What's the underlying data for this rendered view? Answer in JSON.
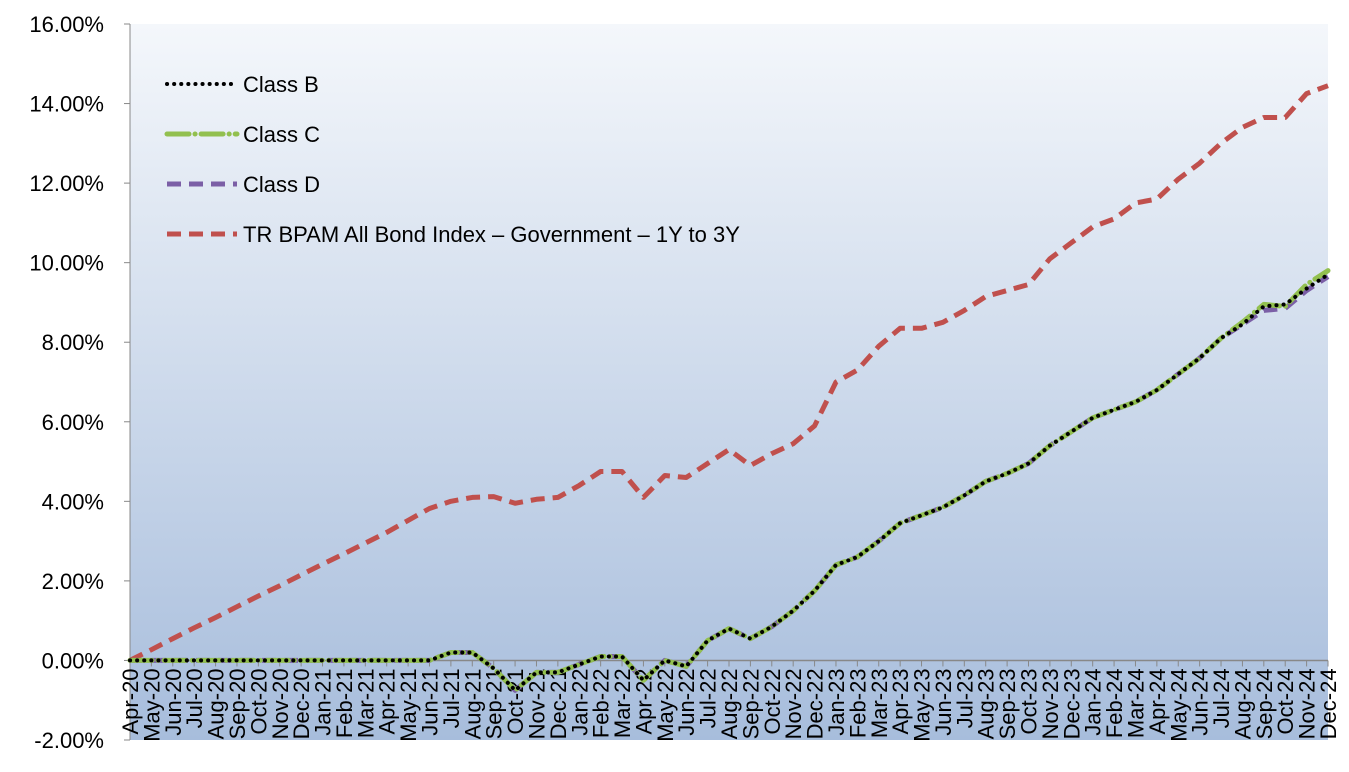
{
  "chart_data": {
    "type": "line",
    "categories": [
      "Apr-20",
      "May-20",
      "Jun-20",
      "Jul-20",
      "Aug-20",
      "Sep-20",
      "Oct-20",
      "Nov-20",
      "Dec-20",
      "Jan-21",
      "Feb-21",
      "Mar-21",
      "Apr-21",
      "May-21",
      "Jun-21",
      "Jul-21",
      "Aug-21",
      "Sep-21",
      "Oct-21",
      "Nov-21",
      "Dec-21",
      "Jan-22",
      "Feb-22",
      "Mar-22",
      "Apr-22",
      "May-22",
      "Jun-22",
      "Jul-22",
      "Aug-22",
      "Sep-22",
      "Oct-22",
      "Nov-22",
      "Dec-22",
      "Jan-23",
      "Feb-23",
      "Mar-23",
      "Apr-23",
      "May-23",
      "Jun-23",
      "Jul-23",
      "Aug-23",
      "Sep-23",
      "Oct-23",
      "Nov-23",
      "Dec-23",
      "Jan-24",
      "Feb-24",
      "Mar-24",
      "Apr-24",
      "May-24",
      "Jun-24",
      "Jul-24",
      "Aug-24",
      "Sep-24",
      "Oct-24",
      "Nov-24",
      "Dec-24"
    ],
    "series": [
      {
        "name": "Class B",
        "color": "#000000",
        "values": [
          0,
          0,
          0,
          0,
          0,
          0,
          0,
          0,
          0,
          0,
          0,
          0,
          0,
          0,
          0,
          0.2,
          0.2,
          -0.2,
          -0.75,
          -0.3,
          -0.3,
          -0.1,
          0.1,
          0.1,
          -0.5,
          0,
          -0.15,
          0.5,
          0.8,
          0.55,
          0.85,
          1.25,
          1.75,
          2.4,
          2.6,
          3.0,
          3.45,
          3.65,
          3.85,
          4.15,
          4.5,
          4.7,
          4.95,
          5.4,
          5.75,
          6.1,
          6.3,
          6.5,
          6.8,
          7.2,
          7.6,
          8.1,
          8.45,
          8.9,
          8.95,
          9.35,
          9.7
        ]
      },
      {
        "name": "Class C",
        "color": "#92c04f",
        "values": [
          0,
          0,
          0,
          0,
          0,
          0,
          0,
          0,
          0,
          0,
          0,
          0,
          0,
          0,
          0,
          0.2,
          0.2,
          -0.2,
          -0.75,
          -0.3,
          -0.3,
          -0.1,
          0.1,
          0.1,
          -0.5,
          0,
          -0.15,
          0.5,
          0.8,
          0.55,
          0.85,
          1.25,
          1.75,
          2.4,
          2.6,
          3.0,
          3.45,
          3.65,
          3.85,
          4.15,
          4.5,
          4.7,
          4.95,
          5.4,
          5.75,
          6.1,
          6.3,
          6.5,
          6.8,
          7.2,
          7.6,
          8.1,
          8.5,
          8.95,
          8.9,
          9.45,
          9.8
        ]
      },
      {
        "name": "Class D",
        "color": "#7b5fa6",
        "values": [
          0,
          0,
          0,
          0,
          0,
          0,
          0,
          0,
          0,
          0,
          0,
          0,
          0,
          0,
          0,
          0.2,
          0.2,
          -0.2,
          -0.75,
          -0.3,
          -0.3,
          -0.1,
          0.1,
          0.1,
          -0.5,
          0,
          -0.15,
          0.5,
          0.8,
          0.55,
          0.85,
          1.25,
          1.75,
          2.4,
          2.6,
          3.0,
          3.45,
          3.65,
          3.85,
          4.15,
          4.5,
          4.7,
          4.95,
          5.4,
          5.75,
          6.1,
          6.3,
          6.5,
          6.8,
          7.2,
          7.6,
          8.1,
          8.45,
          8.8,
          8.85,
          9.3,
          9.65
        ]
      },
      {
        "name": "TR BPAM All Bond Index – Government – 1Y to 3Y",
        "color": "#c0504d",
        "values": [
          0,
          0.27,
          0.55,
          0.82,
          1.08,
          1.35,
          1.62,
          1.88,
          2.15,
          2.42,
          2.68,
          2.95,
          3.22,
          3.52,
          3.82,
          4.0,
          4.1,
          4.12,
          3.95,
          4.05,
          4.1,
          4.4,
          4.75,
          4.75,
          4.1,
          4.65,
          4.6,
          4.95,
          5.3,
          4.9,
          5.2,
          5.45,
          5.9,
          7.0,
          7.3,
          7.9,
          8.35,
          8.35,
          8.5,
          8.8,
          9.15,
          9.3,
          9.45,
          10.1,
          10.5,
          10.9,
          11.1,
          11.5,
          11.6,
          12.1,
          12.5,
          13.0,
          13.4,
          13.65,
          13.65,
          14.25,
          14.45
        ]
      }
    ],
    "ylim": [
      -2,
      16
    ],
    "yticks": [
      {
        "value": -2,
        "label": "-2.00%"
      },
      {
        "value": 0,
        "label": "0.00%"
      },
      {
        "value": 2,
        "label": "2.00%"
      },
      {
        "value": 4,
        "label": "4.00%"
      },
      {
        "value": 6,
        "label": "6.00%"
      },
      {
        "value": 8,
        "label": "8.00%"
      },
      {
        "value": 10,
        "label": "10.00%"
      },
      {
        "value": 12,
        "label": "12.00%"
      },
      {
        "value": 14,
        "label": "14.00%"
      },
      {
        "value": 16,
        "label": "16.00%"
      }
    ],
    "legend": "upper left"
  }
}
